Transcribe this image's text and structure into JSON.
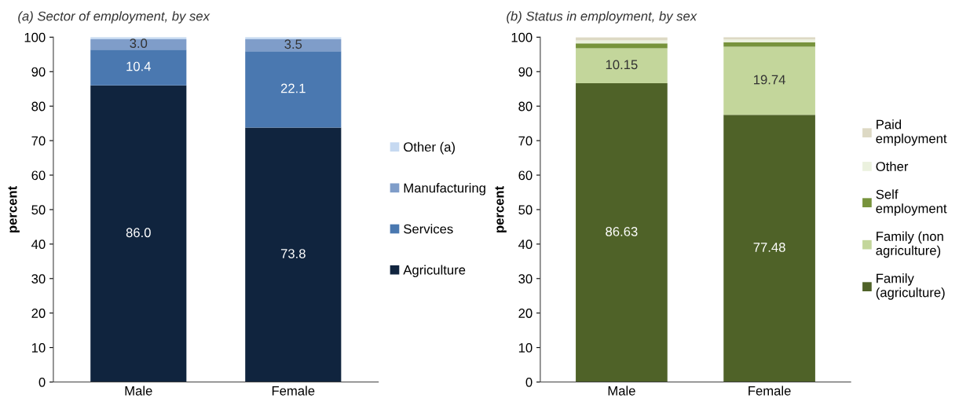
{
  "chart_data": [
    {
      "type": "bar",
      "title": "(a) Sector of employment, by sex",
      "ylabel": "percent",
      "categories": [
        "Male",
        "Female"
      ],
      "stacked": true,
      "ylim": [
        0,
        100
      ],
      "yticks": [
        0,
        10,
        20,
        30,
        40,
        50,
        60,
        70,
        80,
        90,
        100
      ],
      "grid": false,
      "legend": "right",
      "series": [
        {
          "name": "Agriculture",
          "color": "#10243e",
          "values": [
            86.0,
            73.8
          ],
          "value_labels": [
            "86.0",
            "73.8"
          ]
        },
        {
          "name": "Services",
          "color": "#4a78b0",
          "values": [
            10.4,
            22.1
          ],
          "value_labels": [
            "10.4",
            "22.1"
          ]
        },
        {
          "name": "Manufacturing",
          "color": "#7f9dc9",
          "values": [
            3.0,
            3.5
          ],
          "value_labels": [
            "3.0",
            "3.5"
          ]
        },
        {
          "name": "Other (a)",
          "color": "#c6d9f1",
          "values": [
            0.6,
            0.6
          ],
          "value_labels": [
            null,
            null
          ]
        }
      ]
    },
    {
      "type": "bar",
      "title": "(b) Status in employment, by sex",
      "ylabel": "percent",
      "categories": [
        "Male",
        "Female"
      ],
      "stacked": true,
      "ylim": [
        0,
        100
      ],
      "yticks": [
        0,
        10,
        20,
        30,
        40,
        50,
        60,
        70,
        80,
        90,
        100
      ],
      "grid": false,
      "legend": "right",
      "series": [
        {
          "name": "Family (agriculture)",
          "color": "#4f6228",
          "values": [
            86.63,
            77.48
          ],
          "value_labels": [
            "86.63",
            "77.48"
          ]
        },
        {
          "name": "Family (non agriculture)",
          "color": "#c3d69b",
          "values": [
            10.15,
            19.74
          ],
          "value_labels": [
            "10.15",
            "19.74"
          ]
        },
        {
          "name": "Self employment",
          "color": "#77933c",
          "values": [
            1.4,
            1.3
          ],
          "value_labels": [
            null,
            null
          ]
        },
        {
          "name": "Other",
          "color": "#ebf1de",
          "values": [
            0.9,
            0.8
          ],
          "value_labels": [
            null,
            null
          ]
        },
        {
          "name": "Paid employment",
          "color": "#ddd9c4",
          "values": [
            0.9,
            0.7
          ],
          "value_labels": [
            null,
            null
          ]
        }
      ]
    }
  ]
}
